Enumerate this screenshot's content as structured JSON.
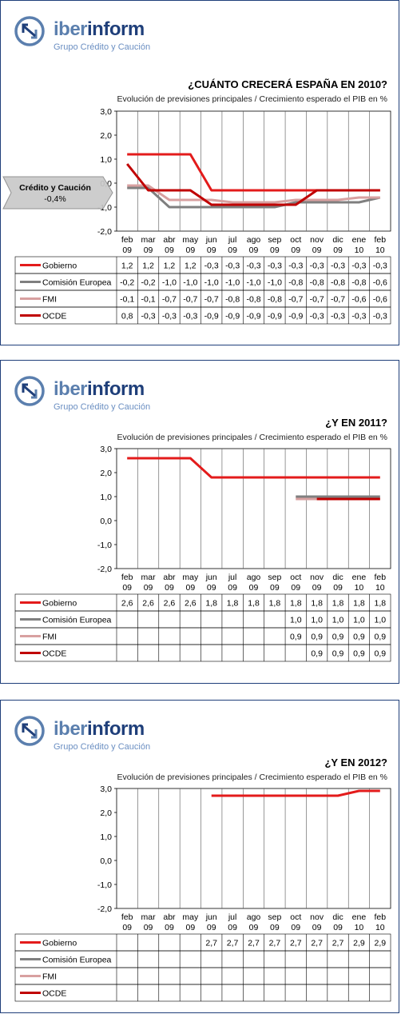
{
  "brand": {
    "name_part1": "iber",
    "name_part2": "inform",
    "tagline": "Grupo Crédito y Caución"
  },
  "months_top": [
    "feb",
    "mar",
    "abr",
    "may",
    "jun",
    "jul",
    "ago",
    "sep",
    "oct",
    "nov",
    "dic",
    "ene",
    "feb"
  ],
  "months_bottom": [
    "09",
    "09",
    "09",
    "09",
    "09",
    "09",
    "09",
    "09",
    "09",
    "09",
    "09",
    "10",
    "10"
  ],
  "colors": {
    "Gobierno": "#e31b1b",
    "Comisión Europea": "#7f7f7f",
    "FMI": "#d8a0a0",
    "OCDE": "#c00000",
    "frame": "#1f3f7a"
  },
  "chart_data": [
    {
      "type": "line",
      "title": "¿CUÁNTO CRECERÁ ESPAÑA EN 2010?",
      "subtitle": "Evolución de previsiones principales / Crecimiento esperado el PIB en %",
      "ylim": [
        -2,
        3
      ],
      "yticks": [
        "3,0",
        "2,0",
        "1,0",
        "0,0",
        "-1,0",
        "-2,0"
      ],
      "callout": {
        "line1": "Crédito y Caución",
        "line2": "-0,4%",
        "value": -0.4
      },
      "series": [
        {
          "name": "Gobierno",
          "values": [
            1.2,
            1.2,
            1.2,
            1.2,
            -0.3,
            -0.3,
            -0.3,
            -0.3,
            -0.3,
            -0.3,
            -0.3,
            -0.3,
            -0.3
          ],
          "labels": [
            "1,2",
            "1,2",
            "1,2",
            "1,2",
            "-0,3",
            "-0,3",
            "-0,3",
            "-0,3",
            "-0,3",
            "-0,3",
            "-0,3",
            "-0,3",
            "-0,3"
          ]
        },
        {
          "name": "Comisión Europea",
          "values": [
            -0.2,
            -0.2,
            -1.0,
            -1.0,
            -1.0,
            -1.0,
            -1.0,
            -1.0,
            -0.8,
            -0.8,
            -0.8,
            -0.8,
            -0.6
          ],
          "labels": [
            "-0,2",
            "-0,2",
            "-1,0",
            "-1,0",
            "-1,0",
            "-1,0",
            "-1,0",
            "-1,0",
            "-0,8",
            "-0,8",
            "-0,8",
            "-0,8",
            "-0,6"
          ]
        },
        {
          "name": "FMI",
          "values": [
            -0.1,
            -0.1,
            -0.7,
            -0.7,
            -0.7,
            -0.8,
            -0.8,
            -0.8,
            -0.7,
            -0.7,
            -0.7,
            -0.6,
            -0.6
          ],
          "labels": [
            "-0,1",
            "-0,1",
            "-0,7",
            "-0,7",
            "-0,7",
            "-0,8",
            "-0,8",
            "-0,8",
            "-0,7",
            "-0,7",
            "-0,7",
            "-0,6",
            "-0,6"
          ]
        },
        {
          "name": "OCDE",
          "values": [
            0.8,
            -0.3,
            -0.3,
            -0.3,
            -0.9,
            -0.9,
            -0.9,
            -0.9,
            -0.9,
            -0.3,
            -0.3,
            -0.3,
            -0.3
          ],
          "labels": [
            "0,8",
            "-0,3",
            "-0,3",
            "-0,3",
            "-0,9",
            "-0,9",
            "-0,9",
            "-0,9",
            "-0,9",
            "-0,3",
            "-0,3",
            "-0,3",
            "-0,3"
          ]
        }
      ]
    },
    {
      "type": "line",
      "title": "¿Y EN 2011?",
      "subtitle": "Evolución de previsiones principales / Crecimiento esperado el PIB en %",
      "ylim": [
        -2,
        3
      ],
      "yticks": [
        "3,0",
        "2,0",
        "1,0",
        "0,0",
        "-1,0",
        "-2,0"
      ],
      "series": [
        {
          "name": "Gobierno",
          "values": [
            2.6,
            2.6,
            2.6,
            2.6,
            1.8,
            1.8,
            1.8,
            1.8,
            1.8,
            1.8,
            1.8,
            1.8,
            1.8
          ],
          "labels": [
            "2,6",
            "2,6",
            "2,6",
            "2,6",
            "1,8",
            "1,8",
            "1,8",
            "1,8",
            "1,8",
            "1,8",
            "1,8",
            "1,8",
            "1,8"
          ]
        },
        {
          "name": "Comisión Europea",
          "values": [
            null,
            null,
            null,
            null,
            null,
            null,
            null,
            null,
            1.0,
            1.0,
            1.0,
            1.0,
            1.0
          ],
          "labels": [
            "",
            "",
            "",
            "",
            "",
            "",
            "",
            "",
            "1,0",
            "1,0",
            "1,0",
            "1,0",
            "1,0"
          ]
        },
        {
          "name": "FMI",
          "values": [
            null,
            null,
            null,
            null,
            null,
            null,
            null,
            null,
            0.9,
            0.9,
            0.9,
            0.9,
            0.9
          ],
          "labels": [
            "",
            "",
            "",
            "",
            "",
            "",
            "",
            "",
            "0,9",
            "0,9",
            "0,9",
            "0,9",
            "0,9"
          ]
        },
        {
          "name": "OCDE",
          "values": [
            null,
            null,
            null,
            null,
            null,
            null,
            null,
            null,
            null,
            0.9,
            0.9,
            0.9,
            0.9
          ],
          "labels": [
            "",
            "",
            "",
            "",
            "",
            "",
            "",
            "",
            "",
            "0,9",
            "0,9",
            "0,9",
            "0,9"
          ]
        }
      ]
    },
    {
      "type": "line",
      "title": "¿Y EN 2012?",
      "subtitle": "Evolución de previsiones principales / Crecimiento esperado el PIB en %",
      "ylim": [
        -2,
        3
      ],
      "yticks": [
        "3,0",
        "2,0",
        "1,0",
        "0,0",
        "-1,0",
        "-2,0"
      ],
      "series": [
        {
          "name": "Gobierno",
          "values": [
            null,
            null,
            null,
            null,
            2.7,
            2.7,
            2.7,
            2.7,
            2.7,
            2.7,
            2.7,
            2.9,
            2.9
          ],
          "labels": [
            "",
            "",
            "",
            "",
            "2,7",
            "2,7",
            "2,7",
            "2,7",
            "2,7",
            "2,7",
            "2,7",
            "2,9",
            "2,9"
          ]
        },
        {
          "name": "Comisión Europea",
          "values": [
            null,
            null,
            null,
            null,
            null,
            null,
            null,
            null,
            null,
            null,
            null,
            null,
            null
          ],
          "labels": [
            "",
            "",
            "",
            "",
            "",
            "",
            "",
            "",
            "",
            "",
            "",
            "",
            ""
          ]
        },
        {
          "name": "FMI",
          "values": [
            null,
            null,
            null,
            null,
            null,
            null,
            null,
            null,
            null,
            null,
            null,
            null,
            null
          ],
          "labels": [
            "",
            "",
            "",
            "",
            "",
            "",
            "",
            "",
            "",
            "",
            "",
            "",
            ""
          ]
        },
        {
          "name": "OCDE",
          "values": [
            null,
            null,
            null,
            null,
            null,
            null,
            null,
            null,
            null,
            null,
            null,
            null,
            null
          ],
          "labels": [
            "",
            "",
            "",
            "",
            "",
            "",
            "",
            "",
            "",
            "",
            "",
            "",
            ""
          ]
        }
      ]
    }
  ]
}
